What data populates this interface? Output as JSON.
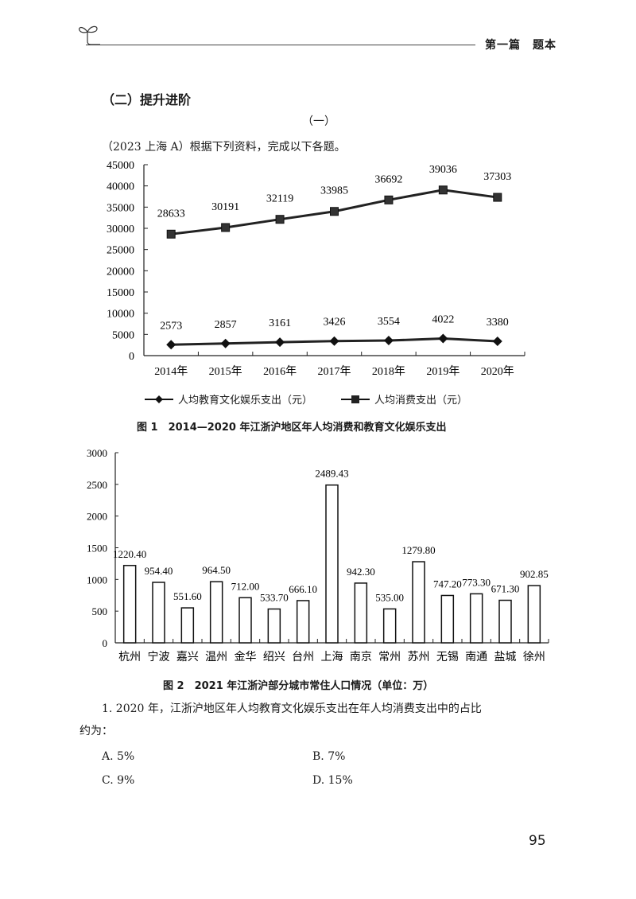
{
  "header": {
    "running_head": "第一篇　题本",
    "icon": "sprout-icon"
  },
  "section": {
    "title": "（二）提升进阶",
    "subtitle": "（一）",
    "intro": "（2023  上海 A）根据下列资料，完成以下各题。"
  },
  "figure1": {
    "caption": "图 1　2014—2020 年江浙沪地区年人均消费和教育文化娱乐支出",
    "legend": [
      {
        "label": "人均教育文化娱乐支出（元）",
        "marker": "diamond"
      },
      {
        "label": "人均消费支出（元）",
        "marker": "square"
      }
    ]
  },
  "figure2": {
    "caption": "图 2　2021 年江浙沪部分城市常住人口情况（单位：万）"
  },
  "chart_data": [
    {
      "type": "line",
      "title": "图 1　2014—2020 年江浙沪地区年人均消费和教育文化娱乐支出",
      "categories": [
        "2014年",
        "2015年",
        "2016年",
        "2017年",
        "2018年",
        "2019年",
        "2020年"
      ],
      "series": [
        {
          "name": "人均教育文化娱乐支出（元）",
          "marker": "diamond",
          "values": [
            2573,
            2857,
            3161,
            3426,
            3554,
            4022,
            3380
          ]
        },
        {
          "name": "人均消费支出（元）",
          "marker": "square",
          "values": [
            28633,
            30191,
            32119,
            33985,
            36692,
            39036,
            37303
          ]
        }
      ],
      "yticks": [
        0,
        5000,
        10000,
        15000,
        20000,
        25000,
        30000,
        35000,
        40000,
        45000
      ],
      "ylim": [
        0,
        45000
      ],
      "xlabel": "",
      "ylabel": "",
      "grid": false,
      "legend_position": "bottom"
    },
    {
      "type": "bar",
      "title": "图 2　2021 年江浙沪部分城市常住人口情况（单位：万）",
      "categories": [
        "杭州",
        "宁波",
        "嘉兴",
        "温州",
        "金华",
        "绍兴",
        "台州",
        "上海",
        "南京",
        "常州",
        "苏州",
        "无锡",
        "南通",
        "盐城",
        "徐州"
      ],
      "values": [
        1220.4,
        954.4,
        551.6,
        964.5,
        712.0,
        533.7,
        666.1,
        2489.43,
        942.3,
        535.0,
        1279.8,
        747.2,
        773.3,
        671.3,
        902.85
      ],
      "labels": [
        "1220.40",
        "954.40",
        "551.60",
        "964.50",
        "712.00",
        "533.70",
        "666.10",
        "2489.43",
        "942.30",
        "535.00",
        "1279.80",
        "747.20",
        "773.30",
        "671.30",
        "902.85"
      ],
      "yticks": [
        0,
        500,
        1000,
        1500,
        2000,
        2500,
        3000
      ],
      "ylim": [
        0,
        3000
      ],
      "xlabel": "",
      "ylabel": "",
      "grid": false
    }
  ],
  "question": {
    "line1": "1. 2020 年，江浙沪地区年人均教育文化娱乐支出在年人均消费支出中的占比",
    "line2": "约为：",
    "options": [
      {
        "label": "A. 5%"
      },
      {
        "label": "B. 7%"
      },
      {
        "label": "C. 9%"
      },
      {
        "label": "D. 15%"
      }
    ]
  },
  "page_number": "95"
}
